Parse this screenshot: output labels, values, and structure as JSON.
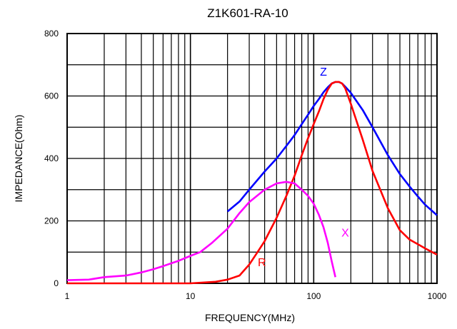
{
  "chart_data": {
    "type": "line",
    "title": "Z1K601-RA-10",
    "xlabel": "FREQUENCY(MHz)",
    "ylabel": "IMPEDANCE(Ohm)",
    "xscale": "log",
    "xlim": [
      1,
      1000
    ],
    "ylim": [
      0,
      800
    ],
    "x_ticks": [
      1,
      10,
      100,
      1000
    ],
    "x_tick_labels": [
      "1",
      "10",
      "100",
      "1000"
    ],
    "y_ticks": [
      0,
      200,
      400,
      600,
      800
    ],
    "y_tick_labels": [
      "0",
      "200",
      "400",
      "600",
      "800"
    ],
    "grid": true,
    "series": [
      {
        "name": "Z",
        "color": "#0000ff",
        "points": [
          [
            20,
            230
          ],
          [
            25,
            262
          ],
          [
            30,
            300
          ],
          [
            40,
            358
          ],
          [
            50,
            400
          ],
          [
            60,
            440
          ],
          [
            70,
            475
          ],
          [
            80,
            510
          ],
          [
            90,
            540
          ],
          [
            100,
            568
          ],
          [
            110,
            590
          ],
          [
            120,
            612
          ],
          [
            130,
            628
          ],
          [
            140,
            640
          ],
          [
            150,
            645
          ],
          [
            160,
            645
          ],
          [
            170,
            640
          ],
          [
            180,
            630
          ],
          [
            200,
            610
          ],
          [
            250,
            555
          ],
          [
            300,
            500
          ],
          [
            400,
            410
          ],
          [
            500,
            350
          ],
          [
            600,
            310
          ],
          [
            700,
            278
          ],
          [
            800,
            252
          ],
          [
            1000,
            218
          ]
        ]
      },
      {
        "name": "R",
        "color": "#ff0000",
        "points": [
          [
            1,
            0
          ],
          [
            10,
            0
          ],
          [
            16,
            5
          ],
          [
            20,
            12
          ],
          [
            25,
            25
          ],
          [
            30,
            60
          ],
          [
            35,
            100
          ],
          [
            40,
            135
          ],
          [
            50,
            210
          ],
          [
            60,
            280
          ],
          [
            70,
            345
          ],
          [
            80,
            410
          ],
          [
            90,
            465
          ],
          [
            100,
            510
          ],
          [
            110,
            550
          ],
          [
            120,
            590
          ],
          [
            130,
            620
          ],
          [
            140,
            640
          ],
          [
            150,
            645
          ],
          [
            160,
            645
          ],
          [
            170,
            640
          ],
          [
            180,
            625
          ],
          [
            200,
            575
          ],
          [
            250,
            460
          ],
          [
            300,
            360
          ],
          [
            400,
            240
          ],
          [
            500,
            170
          ],
          [
            600,
            140
          ],
          [
            700,
            125
          ],
          [
            800,
            112
          ],
          [
            1000,
            92
          ]
        ]
      },
      {
        "name": "X",
        "color": "#ff00ff",
        "points": [
          [
            1,
            10
          ],
          [
            1.5,
            12
          ],
          [
            2,
            20
          ],
          [
            3,
            25
          ],
          [
            4,
            35
          ],
          [
            5,
            45
          ],
          [
            6,
            55
          ],
          [
            8,
            72
          ],
          [
            10,
            88
          ],
          [
            12,
            100
          ],
          [
            15,
            130
          ],
          [
            20,
            175
          ],
          [
            25,
            225
          ],
          [
            30,
            260
          ],
          [
            40,
            300
          ],
          [
            50,
            320
          ],
          [
            60,
            325
          ],
          [
            70,
            320
          ],
          [
            80,
            300
          ],
          [
            90,
            280
          ],
          [
            100,
            255
          ],
          [
            110,
            220
          ],
          [
            120,
            180
          ],
          [
            130,
            130
          ],
          [
            140,
            70
          ],
          [
            150,
            20
          ]
        ]
      }
    ],
    "labels": [
      {
        "text": "Z",
        "series": "Z",
        "x": 120,
        "y": 665,
        "color": "#0000ff"
      },
      {
        "text": "R",
        "series": "R",
        "x": 38,
        "y": 55,
        "color": "#ff0000"
      },
      {
        "text": "X",
        "series": "X",
        "x": 180,
        "y": 150,
        "color": "#ff00ff"
      }
    ]
  }
}
